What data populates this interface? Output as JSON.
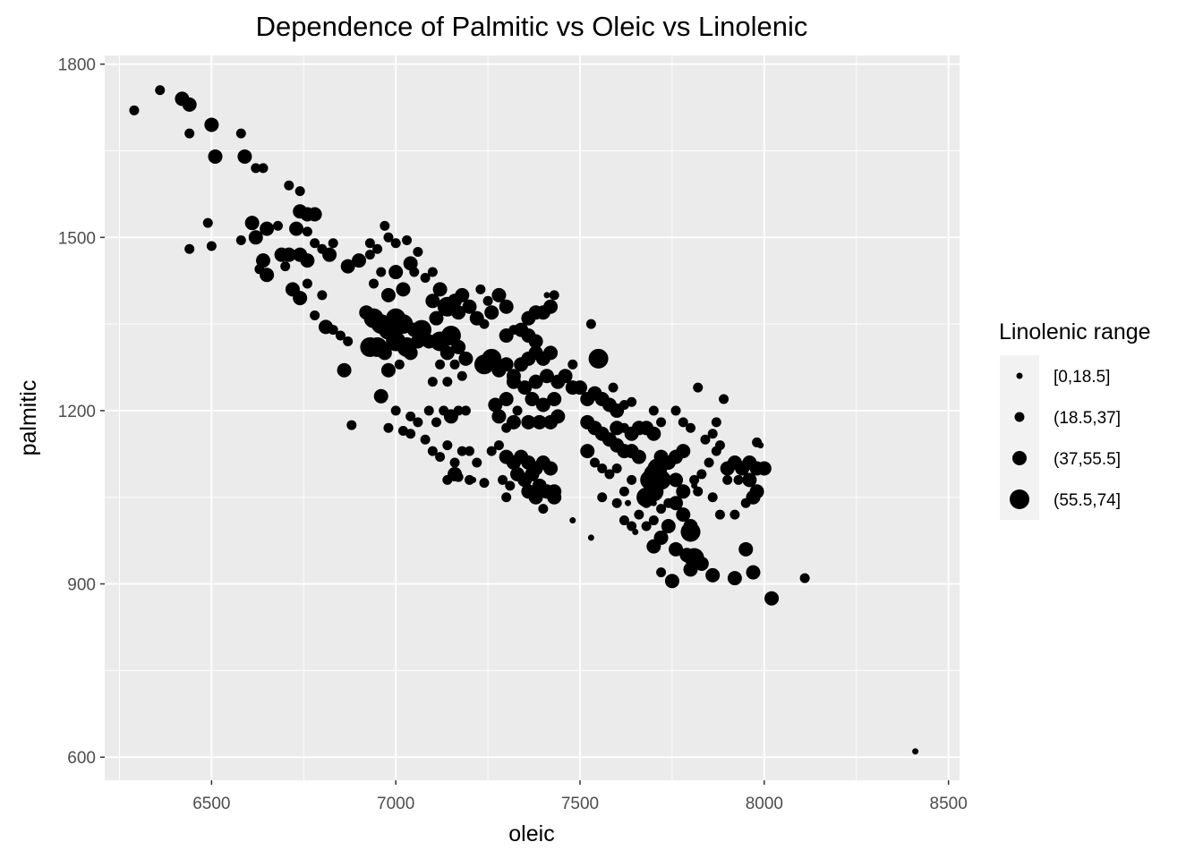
{
  "chart_data": {
    "type": "scatter",
    "title": "Dependence of Palmitic vs Oleic vs Linolenic",
    "xlabel": "oleic",
    "ylabel": "palmitic",
    "xlim": [
      6210,
      8530
    ],
    "ylim": [
      560,
      1815
    ],
    "x_ticks": [
      6500,
      7000,
      7500,
      8000,
      8500
    ],
    "x_tick_labels": [
      "6500",
      "7000",
      "7500",
      "8000",
      "8500"
    ],
    "y_ticks": [
      600,
      900,
      1200,
      1500,
      1800
    ],
    "y_tick_labels": [
      "600",
      "900",
      "1200",
      "1500",
      "1800"
    ],
    "grid": true,
    "colors": {
      "panel": "#ebebeb",
      "grid": "#ffffff",
      "point": "#000000",
      "tick": "#4d4d4d"
    },
    "legend": {
      "title": "Linolenic range",
      "placement": "right",
      "entries": [
        {
          "label": "[0,18.5]",
          "size_class": 1
        },
        {
          "label": "(18.5,37]",
          "size_class": 2
        },
        {
          "label": "(37,55.5]",
          "size_class": 3
        },
        {
          "label": "(55.5,74]",
          "size_class": 4
        }
      ]
    },
    "points": [
      [
        6290,
        1720,
        2
      ],
      [
        6360,
        1755,
        2
      ],
      [
        6420,
        1740,
        3
      ],
      [
        6440,
        1730,
        3
      ],
      [
        6440,
        1680,
        2
      ],
      [
        6500,
        1695,
        3
      ],
      [
        6510,
        1640,
        3
      ],
      [
        6580,
        1680,
        2
      ],
      [
        6590,
        1640,
        3
      ],
      [
        6620,
        1620,
        2
      ],
      [
        6640,
        1620,
        2
      ],
      [
        6490,
        1525,
        2
      ],
      [
        6500,
        1485,
        2
      ],
      [
        6440,
        1480,
        2
      ],
      [
        6580,
        1495,
        2
      ],
      [
        6610,
        1525,
        3
      ],
      [
        6620,
        1500,
        3
      ],
      [
        6650,
        1515,
        3
      ],
      [
        6680,
        1520,
        2
      ],
      [
        6630,
        1445,
        2
      ],
      [
        6640,
        1460,
        3
      ],
      [
        6650,
        1435,
        3
      ],
      [
        6690,
        1470,
        3
      ],
      [
        6700,
        1450,
        2
      ],
      [
        6710,
        1590,
        2
      ],
      [
        6740,
        1580,
        2
      ],
      [
        6740,
        1545,
        3
      ],
      [
        6760,
        1540,
        3
      ],
      [
        6780,
        1540,
        3
      ],
      [
        6730,
        1515,
        3
      ],
      [
        6760,
        1510,
        2
      ],
      [
        6780,
        1490,
        2
      ],
      [
        6800,
        1480,
        2
      ],
      [
        6820,
        1470,
        3
      ],
      [
        6830,
        1490,
        2
      ],
      [
        6710,
        1470,
        3
      ],
      [
        6740,
        1470,
        3
      ],
      [
        6760,
        1460,
        3
      ],
      [
        6720,
        1410,
        3
      ],
      [
        6740,
        1395,
        3
      ],
      [
        6760,
        1420,
        2
      ],
      [
        6780,
        1365,
        2
      ],
      [
        6800,
        1400,
        2
      ],
      [
        6810,
        1345,
        3
      ],
      [
        6830,
        1340,
        2
      ],
      [
        6850,
        1330,
        2
      ],
      [
        6870,
        1320,
        2
      ],
      [
        6860,
        1270,
        3
      ],
      [
        6880,
        1175,
        2
      ],
      [
        6870,
        1450,
        3
      ],
      [
        6900,
        1460,
        3
      ],
      [
        6930,
        1470,
        2
      ],
      [
        6930,
        1490,
        2
      ],
      [
        6950,
        1480,
        2
      ],
      [
        6970,
        1520,
        2
      ],
      [
        6980,
        1500,
        2
      ],
      [
        7000,
        1490,
        2
      ],
      [
        7030,
        1495,
        2
      ],
      [
        7060,
        1475,
        2
      ],
      [
        7040,
        1455,
        3
      ],
      [
        7000,
        1440,
        3
      ],
      [
        6960,
        1440,
        2
      ],
      [
        6940,
        1420,
        2
      ],
      [
        6980,
        1400,
        3
      ],
      [
        7020,
        1410,
        3
      ],
      [
        7050,
        1440,
        2
      ],
      [
        7080,
        1430,
        2
      ],
      [
        7100,
        1440,
        2
      ],
      [
        6920,
        1370,
        3
      ],
      [
        6940,
        1360,
        4
      ],
      [
        6960,
        1350,
        4
      ],
      [
        6980,
        1340,
        4
      ],
      [
        7000,
        1360,
        4
      ],
      [
        7020,
        1350,
        4
      ],
      [
        7050,
        1340,
        3
      ],
      [
        7070,
        1340,
        4
      ],
      [
        6950,
        1310,
        4
      ],
      [
        6930,
        1310,
        4
      ],
      [
        6970,
        1300,
        3
      ],
      [
        7000,
        1320,
        4
      ],
      [
        7030,
        1310,
        4
      ],
      [
        7060,
        1320,
        3
      ],
      [
        7090,
        1320,
        3
      ],
      [
        6980,
        1270,
        3
      ],
      [
        7010,
        1280,
        2
      ],
      [
        7040,
        1300,
        3
      ],
      [
        6960,
        1225,
        3
      ],
      [
        7000,
        1200,
        2
      ],
      [
        7100,
        1390,
        3
      ],
      [
        7120,
        1410,
        3
      ],
      [
        7140,
        1380,
        4
      ],
      [
        7160,
        1390,
        3
      ],
      [
        7180,
        1400,
        3
      ],
      [
        7200,
        1380,
        3
      ],
      [
        7220,
        1360,
        3
      ],
      [
        7240,
        1350,
        2
      ],
      [
        7260,
        1370,
        3
      ],
      [
        7280,
        1400,
        3
      ],
      [
        7300,
        1380,
        3
      ],
      [
        7250,
        1390,
        2
      ],
      [
        7230,
        1410,
        2
      ],
      [
        7170,
        1370,
        3
      ],
      [
        7110,
        1360,
        3
      ],
      [
        7120,
        1320,
        4
      ],
      [
        7150,
        1330,
        4
      ],
      [
        7170,
        1310,
        3
      ],
      [
        7190,
        1290,
        3
      ],
      [
        7120,
        1280,
        2
      ],
      [
        7140,
        1300,
        3
      ],
      [
        7160,
        1280,
        2
      ],
      [
        7180,
        1260,
        2
      ],
      [
        7140,
        1250,
        2
      ],
      [
        7100,
        1250,
        2
      ],
      [
        7090,
        1200,
        2
      ],
      [
        7110,
        1180,
        2
      ],
      [
        7130,
        1200,
        2
      ],
      [
        7150,
        1190,
        3
      ],
      [
        7170,
        1200,
        2
      ],
      [
        7190,
        1200,
        2
      ],
      [
        7060,
        1180,
        2
      ],
      [
        7040,
        1190,
        2
      ],
      [
        7020,
        1165,
        2
      ],
      [
        6980,
        1170,
        2
      ],
      [
        7040,
        1160,
        2
      ],
      [
        7080,
        1150,
        2
      ],
      [
        7100,
        1130,
        2
      ],
      [
        7120,
        1120,
        2
      ],
      [
        7140,
        1140,
        2
      ],
      [
        7160,
        1110,
        2
      ],
      [
        7180,
        1130,
        2
      ],
      [
        7200,
        1130,
        2
      ],
      [
        7220,
        1110,
        2
      ],
      [
        7160,
        1090,
        3
      ],
      [
        7140,
        1080,
        2
      ],
      [
        7170,
        1085,
        2
      ],
      [
        7200,
        1080,
        2
      ],
      [
        7240,
        1280,
        4
      ],
      [
        7260,
        1290,
        4
      ],
      [
        7280,
        1270,
        3
      ],
      [
        7300,
        1280,
        3
      ],
      [
        7320,
        1260,
        3
      ],
      [
        7340,
        1280,
        3
      ],
      [
        7360,
        1290,
        3
      ],
      [
        7380,
        1300,
        3
      ],
      [
        7400,
        1290,
        3
      ],
      [
        7420,
        1300,
        3
      ],
      [
        7380,
        1320,
        3
      ],
      [
        7360,
        1330,
        3
      ],
      [
        7340,
        1340,
        3
      ],
      [
        7320,
        1340,
        2
      ],
      [
        7300,
        1330,
        3
      ],
      [
        7400,
        1370,
        3
      ],
      [
        7420,
        1380,
        3
      ],
      [
        7430,
        1400,
        2
      ],
      [
        7380,
        1370,
        3
      ],
      [
        7360,
        1360,
        3
      ],
      [
        7320,
        1250,
        3
      ],
      [
        7350,
        1240,
        3
      ],
      [
        7380,
        1250,
        3
      ],
      [
        7410,
        1260,
        3
      ],
      [
        7440,
        1250,
        3
      ],
      [
        7460,
        1260,
        3
      ],
      [
        7370,
        1220,
        3
      ],
      [
        7400,
        1210,
        3
      ],
      [
        7430,
        1220,
        3
      ],
      [
        7270,
        1210,
        3
      ],
      [
        7300,
        1220,
        3
      ],
      [
        7280,
        1190,
        3
      ],
      [
        7330,
        1200,
        2
      ],
      [
        7300,
        1170,
        2
      ],
      [
        7320,
        1180,
        3
      ],
      [
        7360,
        1180,
        3
      ],
      [
        7390,
        1180,
        3
      ],
      [
        7420,
        1180,
        3
      ],
      [
        7440,
        1190,
        3
      ],
      [
        7260,
        1130,
        2
      ],
      [
        7280,
        1140,
        2
      ],
      [
        7300,
        1120,
        3
      ],
      [
        7320,
        1110,
        3
      ],
      [
        7340,
        1120,
        3
      ],
      [
        7360,
        1110,
        3
      ],
      [
        7380,
        1100,
        3
      ],
      [
        7400,
        1110,
        3
      ],
      [
        7420,
        1100,
        3
      ],
      [
        7330,
        1090,
        3
      ],
      [
        7350,
        1080,
        3
      ],
      [
        7370,
        1090,
        3
      ],
      [
        7390,
        1070,
        3
      ],
      [
        7410,
        1060,
        3
      ],
      [
        7430,
        1050,
        3
      ],
      [
        7360,
        1060,
        3
      ],
      [
        7380,
        1050,
        3
      ],
      [
        7300,
        1050,
        2
      ],
      [
        7310,
        1070,
        2
      ],
      [
        7290,
        1080,
        2
      ],
      [
        7240,
        1075,
        2
      ],
      [
        7400,
        1030,
        2
      ],
      [
        7430,
        1060,
        3
      ],
      [
        7460,
        1260,
        2
      ],
      [
        7480,
        1240,
        3
      ],
      [
        7500,
        1240,
        3
      ],
      [
        7520,
        1220,
        3
      ],
      [
        7540,
        1230,
        3
      ],
      [
        7550,
        1290,
        4
      ],
      [
        7560,
        1220,
        3
      ],
      [
        7580,
        1210,
        3
      ],
      [
        7600,
        1200,
        3
      ],
      [
        7620,
        1210,
        2
      ],
      [
        7640,
        1215,
        2
      ],
      [
        7520,
        1180,
        3
      ],
      [
        7540,
        1170,
        3
      ],
      [
        7560,
        1160,
        3
      ],
      [
        7580,
        1150,
        3
      ],
      [
        7600,
        1170,
        3
      ],
      [
        7620,
        1170,
        2
      ],
      [
        7640,
        1160,
        3
      ],
      [
        7660,
        1170,
        3
      ],
      [
        7680,
        1170,
        3
      ],
      [
        7700,
        1160,
        3
      ],
      [
        7600,
        1140,
        3
      ],
      [
        7620,
        1130,
        3
      ],
      [
        7640,
        1130,
        3
      ],
      [
        7660,
        1120,
        3
      ],
      [
        7520,
        1130,
        3
      ],
      [
        7540,
        1110,
        2
      ],
      [
        7560,
        1100,
        2
      ],
      [
        7580,
        1090,
        2
      ],
      [
        7600,
        1100,
        2
      ],
      [
        7620,
        1060,
        2
      ],
      [
        7640,
        1080,
        2
      ],
      [
        7560,
        1050,
        2
      ],
      [
        7600,
        1040,
        2
      ],
      [
        7620,
        1010,
        2
      ],
      [
        7640,
        1000,
        2
      ],
      [
        7660,
        1020,
        2
      ],
      [
        7680,
        1040,
        2
      ],
      [
        7700,
        1060,
        2
      ],
      [
        7530,
        1350,
        2
      ],
      [
        7480,
        1280,
        2
      ],
      [
        7590,
        1240,
        2
      ],
      [
        7690,
        1080,
        4
      ],
      [
        7700,
        1090,
        4
      ],
      [
        7710,
        1100,
        4
      ],
      [
        7720,
        1080,
        4
      ],
      [
        7700,
        1060,
        4
      ],
      [
        7680,
        1050,
        4
      ],
      [
        7720,
        1120,
        3
      ],
      [
        7740,
        1110,
        3
      ],
      [
        7760,
        1120,
        3
      ],
      [
        7780,
        1130,
        3
      ],
      [
        7760,
        1080,
        3
      ],
      [
        7780,
        1060,
        3
      ],
      [
        7760,
        1040,
        3
      ],
      [
        7780,
        1020,
        3
      ],
      [
        7800,
        1000,
        3
      ],
      [
        7740,
        1000,
        3
      ],
      [
        7720,
        980,
        3
      ],
      [
        7700,
        965,
        3
      ],
      [
        7760,
        960,
        3
      ],
      [
        7800,
        990,
        4
      ],
      [
        7790,
        950,
        3
      ],
      [
        7810,
        945,
        4
      ],
      [
        7830,
        935,
        3
      ],
      [
        7800,
        925,
        3
      ],
      [
        7860,
        915,
        3
      ],
      [
        7750,
        905,
        3
      ],
      [
        7720,
        920,
        2
      ],
      [
        7920,
        910,
        3
      ],
      [
        7970,
        920,
        3
      ],
      [
        8020,
        875,
        3
      ],
      [
        8110,
        910,
        2
      ],
      [
        7950,
        960,
        3
      ],
      [
        7680,
        1000,
        2
      ],
      [
        7700,
        1010,
        2
      ],
      [
        7740,
        1040,
        2
      ],
      [
        7720,
        1030,
        2
      ],
      [
        7700,
        1200,
        2
      ],
      [
        7720,
        1180,
        2
      ],
      [
        7760,
        1200,
        2
      ],
      [
        7780,
        1180,
        2
      ],
      [
        7800,
        1170,
        2
      ],
      [
        7820,
        1240,
        2
      ],
      [
        7840,
        1150,
        2
      ],
      [
        7860,
        1160,
        2
      ],
      [
        7870,
        1180,
        2
      ],
      [
        7880,
        1140,
        2
      ],
      [
        7890,
        1220,
        2
      ],
      [
        7900,
        1100,
        3
      ],
      [
        7920,
        1110,
        3
      ],
      [
        7940,
        1100,
        3
      ],
      [
        7960,
        1110,
        3
      ],
      [
        7980,
        1100,
        3
      ],
      [
        8000,
        1100,
        3
      ],
      [
        7960,
        1080,
        3
      ],
      [
        7980,
        1060,
        3
      ],
      [
        7970,
        1050,
        3
      ],
      [
        7930,
        1080,
        2
      ],
      [
        7900,
        1080,
        2
      ],
      [
        7870,
        1130,
        2
      ],
      [
        7850,
        1110,
        2
      ],
      [
        7830,
        1090,
        2
      ],
      [
        7810,
        1080,
        2
      ],
      [
        7820,
        1060,
        2
      ],
      [
        7860,
        1050,
        2
      ],
      [
        7880,
        1020,
        2
      ],
      [
        7920,
        1020,
        2
      ],
      [
        7950,
        1040,
        2
      ],
      [
        7980,
        1145,
        2
      ],
      [
        8410,
        610,
        1
      ],
      [
        7410,
        1400,
        1
      ],
      [
        7530,
        1350,
        1
      ],
      [
        7820,
        1240,
        1
      ],
      [
        7890,
        1220,
        1
      ],
      [
        7990,
        1140,
        1
      ],
      [
        7480,
        1010,
        1
      ],
      [
        7530,
        980,
        1
      ],
      [
        7720,
        920,
        1
      ],
      [
        7720,
        1090,
        1
      ],
      [
        7810,
        1070,
        1
      ],
      [
        7630,
        1040,
        1
      ],
      [
        7650,
        990,
        1
      ],
      [
        7700,
        1040,
        1
      ],
      [
        7210,
        1080,
        1
      ]
    ]
  }
}
